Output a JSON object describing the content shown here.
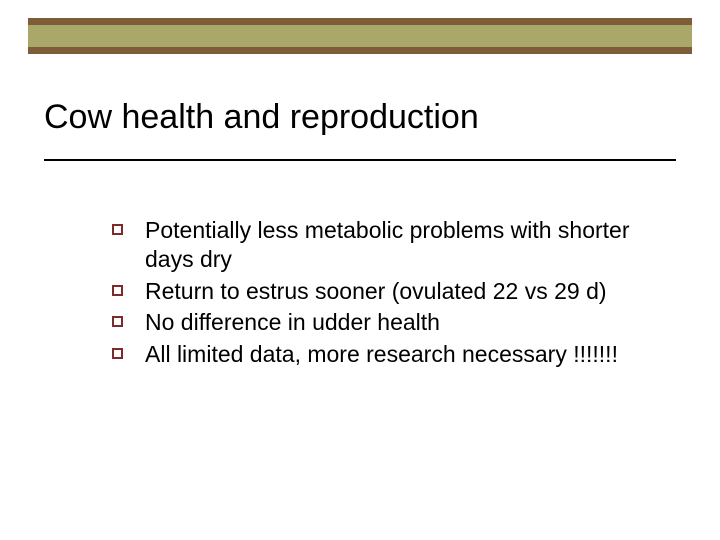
{
  "slide": {
    "background_color": "#ffffff",
    "band": {
      "stripes": [
        {
          "height": 7,
          "color": "#7e5c39"
        },
        {
          "height": 22,
          "color": "#a9a86a"
        },
        {
          "height": 7,
          "color": "#7e5c39"
        }
      ]
    },
    "title": {
      "text": "Cow health and reproduction",
      "fontsize": 34,
      "color": "#000000",
      "underline_color": "#000000"
    },
    "bullets": {
      "marker_border_color": "#7e2a2a",
      "text_color": "#000000",
      "text_fontsize": 23,
      "items": [
        {
          "text": "Potentially  less metabolic problems with shorter days dry"
        },
        {
          "text": "Return to estrus sooner (ovulated 22 vs 29 d)"
        },
        {
          "text": "No difference in udder health"
        },
        {
          "text": "All limited data, more research necessary !!!!!!!"
        }
      ]
    }
  }
}
